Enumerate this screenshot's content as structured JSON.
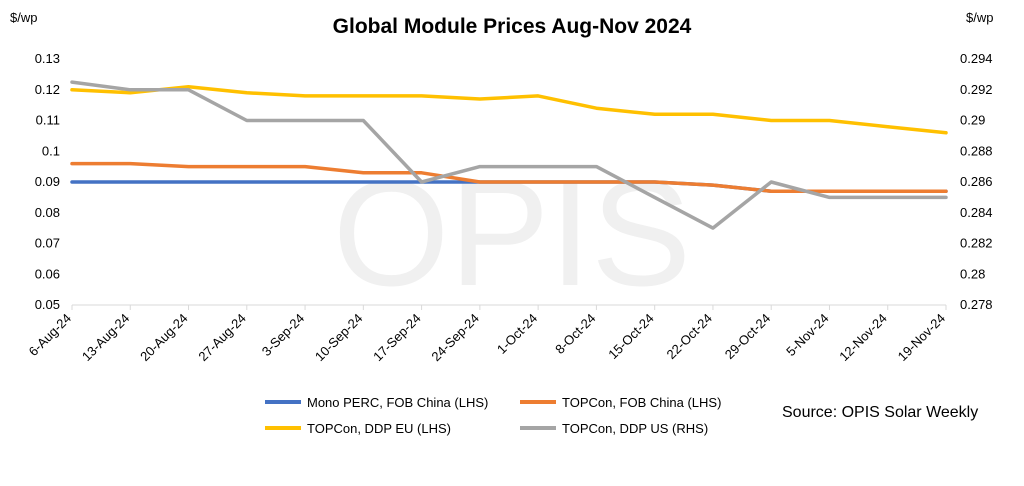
{
  "chart_data": {
    "type": "line",
    "title": "Global Module Prices Aug-Nov 2024",
    "left_unit": "$/wp",
    "right_unit": "$/wp",
    "watermark": "OPIS",
    "source": "Source: OPIS Solar Weekly",
    "categories": [
      "6-Aug-24",
      "13-Aug-24",
      "20-Aug-24",
      "27-Aug-24",
      "3-Sep-24",
      "10-Sep-24",
      "17-Sep-24",
      "24-Sep-24",
      "1-Oct-24",
      "8-Oct-24",
      "15-Oct-24",
      "22-Oct-24",
      "29-Oct-24",
      "5-Nov-24",
      "12-Nov-24",
      "19-Nov-24"
    ],
    "left_axis": {
      "min": 0.05,
      "max": 0.13,
      "ticks": [
        "0.05",
        "0.06",
        "0.07",
        "0.08",
        "0.09",
        "0.1",
        "0.11",
        "0.12",
        "0.13"
      ]
    },
    "right_axis": {
      "min": 0.278,
      "max": 0.294,
      "ticks": [
        "0.278",
        "0.28",
        "0.282",
        "0.284",
        "0.286",
        "0.288",
        "0.29",
        "0.292",
        "0.294"
      ]
    },
    "gridlines": false,
    "legend_position": "bottom",
    "series": [
      {
        "name": "Mono PERC, FOB China (LHS)",
        "axis": "left",
        "color": "#4472C4",
        "values": [
          0.09,
          0.09,
          0.09,
          0.09,
          0.09,
          0.09,
          0.09,
          0.09,
          0.09,
          0.09,
          0.09,
          0.089,
          0.087,
          0.087,
          0.087,
          0.087
        ]
      },
      {
        "name": "TOPCon, FOB China (LHS)",
        "axis": "left",
        "color": "#ED7D31",
        "values": [
          0.096,
          0.096,
          0.095,
          0.095,
          0.095,
          0.093,
          0.093,
          0.09,
          0.09,
          0.09,
          0.09,
          0.089,
          0.087,
          0.087,
          0.087,
          0.087
        ]
      },
      {
        "name": "TOPCon, DDP EU (LHS)",
        "axis": "left",
        "color": "#FFC000",
        "values": [
          0.12,
          0.119,
          0.121,
          0.119,
          0.118,
          0.118,
          0.118,
          0.117,
          0.118,
          0.114,
          0.112,
          0.112,
          0.11,
          0.11,
          0.108,
          0.106
        ]
      },
      {
        "name": "TOPCon, DDP US (RHS)",
        "axis": "right",
        "color": "#A5A5A5",
        "values": [
          0.2925,
          0.292,
          0.292,
          0.29,
          0.29,
          0.29,
          0.286,
          0.287,
          0.287,
          0.287,
          0.285,
          0.283,
          0.286,
          0.285,
          0.285,
          0.285
        ]
      }
    ]
  }
}
